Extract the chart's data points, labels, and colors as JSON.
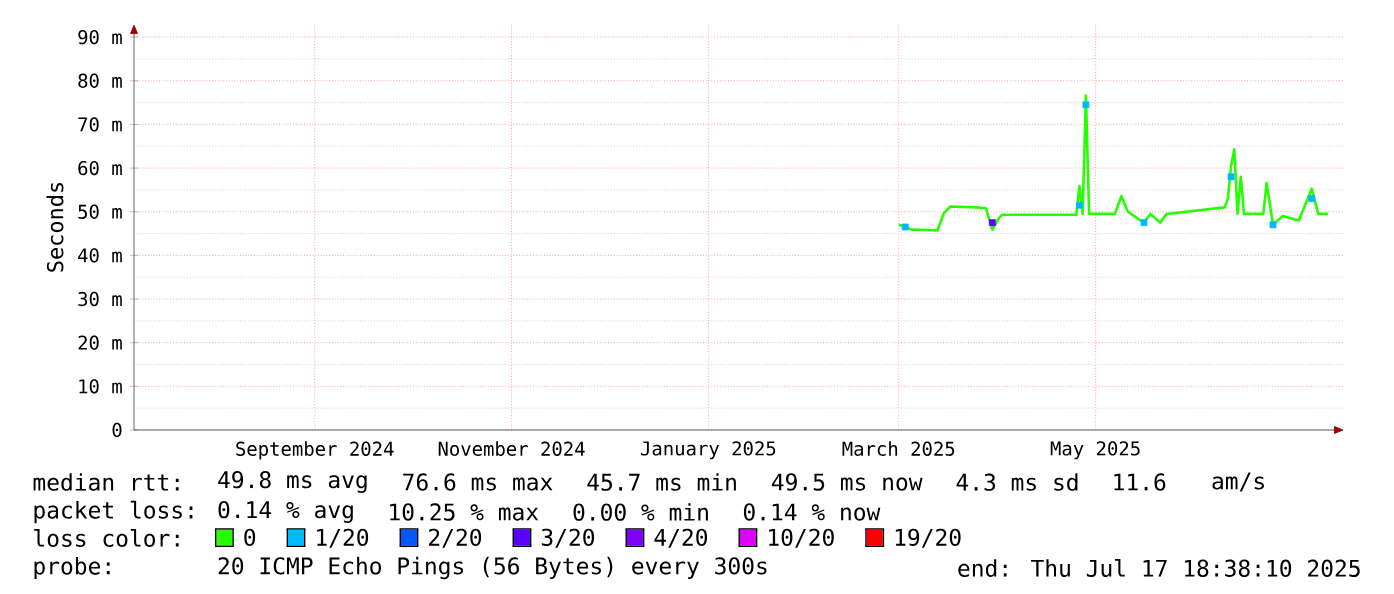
{
  "chart_data": {
    "type": "line",
    "ylabel": "Seconds",
    "xlim": [
      "2024-07-07",
      "2025-07-17"
    ],
    "xticks": [
      {
        "value": "2024-09-01",
        "label": "September 2024"
      },
      {
        "value": "2024-11-01",
        "label": "November 2024"
      },
      {
        "value": "2025-01-01",
        "label": "January 2025"
      },
      {
        "value": "2025-03-01",
        "label": "March 2025"
      },
      {
        "value": "2025-05-01",
        "label": "May 2025"
      }
    ],
    "ylim": [
      0,
      93
    ],
    "yticks": [
      0,
      {
        "value": 10,
        "label": "10 m"
      },
      {
        "value": 20,
        "label": "20 m"
      },
      {
        "value": 30,
        "label": "30 m"
      },
      {
        "value": 40,
        "label": "40 m"
      },
      {
        "value": 50,
        "label": "50 m"
      },
      {
        "value": 60,
        "label": "60 m"
      },
      {
        "value": 70,
        "label": "70 m"
      },
      {
        "value": 80,
        "label": "80 m"
      },
      {
        "value": 90,
        "label": "90 m"
      }
    ],
    "grid": true,
    "legend": "bottom",
    "legend_title": "loss color:",
    "series": [
      {
        "name": "0",
        "color": "#26ff00",
        "x": [
          "2025-03-01",
          "2025-03-03",
          "2025-03-05",
          "2025-03-10",
          "2025-03-13",
          "2025-03-15",
          "2025-03-17",
          "2025-03-25",
          "2025-03-28",
          "2025-03-30",
          "2025-04-01",
          "2025-04-02",
          "2025-04-25",
          "2025-04-26",
          "2025-04-27",
          "2025-04-28",
          "2025-04-29",
          "2025-05-07",
          "2025-05-09",
          "2025-05-11",
          "2025-05-16",
          "2025-05-18",
          "2025-05-21",
          "2025-05-23",
          "2025-06-10",
          "2025-06-11",
          "2025-06-12",
          "2025-06-13",
          "2025-06-14",
          "2025-06-15",
          "2025-06-16",
          "2025-06-22",
          "2025-06-23",
          "2025-06-25",
          "2025-06-28",
          "2025-07-03",
          "2025-07-07",
          "2025-07-09",
          "2025-07-12"
        ],
        "values": [
          47.0,
          46.5,
          45.9,
          45.8,
          45.7,
          49.7,
          51.2,
          51.0,
          50.8,
          45.9,
          48.5,
          49.3,
          49.3,
          55.9,
          49.5,
          76.6,
          49.5,
          49.5,
          53.6,
          50.0,
          47.5,
          49.5,
          47.5,
          49.5,
          51.0,
          53.0,
          60.5,
          64.3,
          49.5,
          58.0,
          49.5,
          49.5,
          56.6,
          47.0,
          49.0,
          48.0,
          55.3,
          49.5,
          49.5
        ]
      },
      {
        "name": "1/20",
        "type": "scatter",
        "marker": "square",
        "color": "#00b8ff",
        "x": [
          "2025-03-03",
          "2025-04-26",
          "2025-04-28",
          "2025-05-16",
          "2025-06-12",
          "2025-06-25",
          "2025-07-07"
        ],
        "values": [
          46.5,
          51.5,
          74.5,
          47.5,
          58.0,
          47.0,
          53.0
        ]
      },
      {
        "name": "2/20",
        "type": "scatter",
        "color": "#0059ff"
      },
      {
        "name": "3/20",
        "type": "scatter",
        "marker": "square",
        "color": "#5e00ff",
        "x": [
          "2025-03-30"
        ],
        "values": [
          47.5
        ]
      },
      {
        "name": "4/20",
        "type": "scatter",
        "color": "#7e00ff"
      },
      {
        "name": "10/20",
        "type": "scatter",
        "color": "#dd00ff"
      },
      {
        "name": "19/20",
        "type": "scatter",
        "color": "#ff0000"
      }
    ],
    "annotations": [
      "median rtt:",
      "49.8 ms avg",
      "76.6 ms max",
      "45.7 ms min",
      "49.5 ms now",
      "4.3 ms sd",
      "11.6",
      "am/s",
      "packet loss:",
      "0.14 % avg",
      "10.25 % max",
      "0.00 % min",
      "0.14 % now",
      "probe:",
      "20 ICMP Echo Pings (56 Bytes) every 300s",
      "end: Thu Jul 17 18:38:10 2025"
    ]
  }
}
